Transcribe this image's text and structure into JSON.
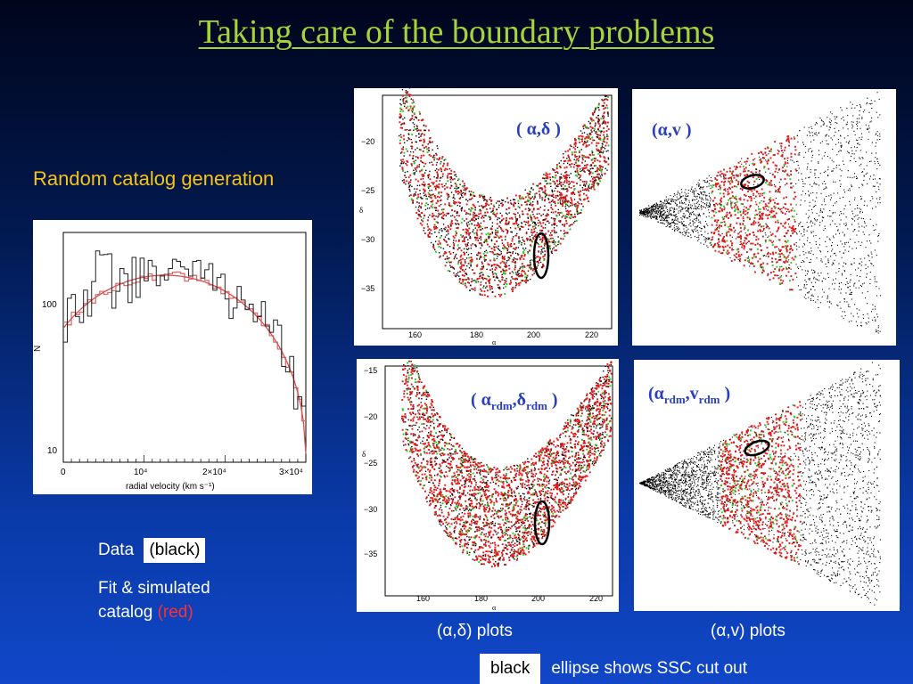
{
  "slide": {
    "title": "Taking care of the boundary problems",
    "subtitle": "Random catalog generation"
  },
  "histogram": {
    "ylabel": "N",
    "xlabel": "radial velocity (km s⁻¹)",
    "yticks": [
      "100",
      "10"
    ],
    "xticks": [
      "0",
      "10⁴",
      "2×10⁴",
      "3×10⁴"
    ]
  },
  "legend": {
    "data_label": "Data",
    "data_box": "(black)",
    "fit_line1": "Fit & simulated",
    "fit_line2": "catalog",
    "fit_red": "(red)"
  },
  "panels": {
    "top_left": {
      "label_pre": "( α,δ )",
      "yticks": [
        "−20",
        "−25",
        "−30",
        "−35"
      ],
      "xticks": [
        "160",
        "180",
        "200",
        "220"
      ],
      "xlabel": "α",
      "ylabel": "δ"
    },
    "top_right": {
      "label": "(α,v )"
    },
    "bottom_left": {
      "label_a": "( α",
      "label_sub1": "rdm",
      "label_b": ",δ",
      "label_sub2": "rdm",
      "label_c": " )",
      "yticks": [
        "−15",
        "−20",
        "−25",
        "−30",
        "−35"
      ],
      "xticks": [
        "160",
        "180",
        "200",
        "220"
      ],
      "xlabel": "α",
      "ylabel": "δ"
    },
    "bottom_right": {
      "label_a": "(α",
      "label_sub1": "rdm",
      "label_b": ",v",
      "label_sub2": "rdm",
      "label_c": " )"
    }
  },
  "captions": {
    "left": "(α,δ) plots",
    "right": "(α,v) plots",
    "note_box": "black",
    "note_text": "ellipse shows SSC cut out"
  },
  "colors": {
    "data": "#000000",
    "random": "#e01818",
    "ssc": "#22d022"
  }
}
